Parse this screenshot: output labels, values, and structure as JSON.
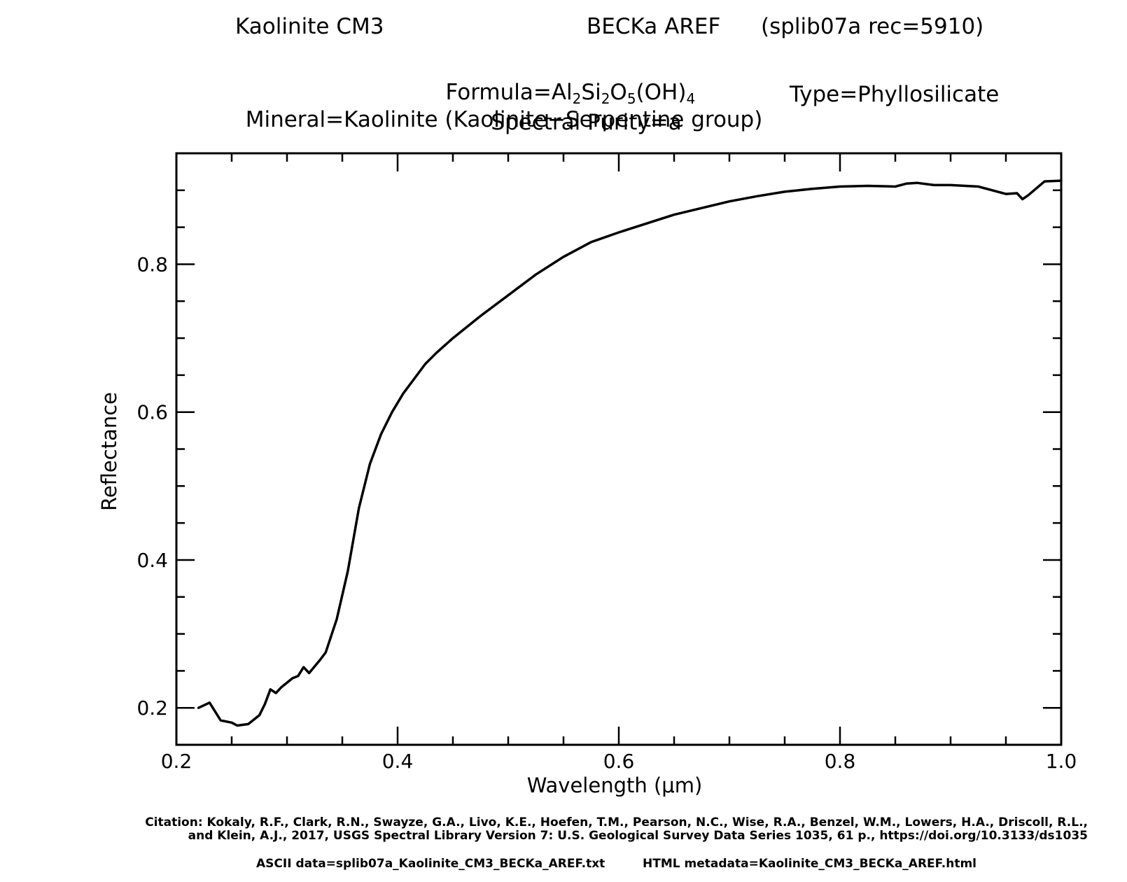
{
  "header": {
    "sample": "Kaolinite CM3",
    "spectrum": "BECKa AREF",
    "record": "(splib07a rec=5910)",
    "formula": {
      "prefix": "Formula=Al",
      "al_sub": "2",
      "si": "Si",
      "si_sub": "2",
      "o": "O",
      "o_sub": "5",
      "oh": "(OH)",
      "oh_sub": "4"
    },
    "mineral": "Mineral=Kaolinite (Kaolinite−Serpentine group)",
    "type": "Type=Phyllosilicate",
    "purity": "Spectral Purity=a"
  },
  "footer": {
    "citation_line1": "Citation: Kokaly, R.F., Clark, R.N., Swayze, G.A., Livo, K.E., Hoefen, T.M., Pearson, N.C., Wise, R.A., Benzel, W.M., Lowers, H.A., Driscoll, R.L.,",
    "citation_line2": "and Klein, A.J., 2017, USGS Spectral Library Version 7: U.S. Geological Survey Data Series 1035, 61 p., https://doi.org/10.3133/ds1035",
    "ascii_data": "ASCII data=splib07a_Kaolinite_CM3_BECKa_AREF.txt",
    "html_metadata": "HTML metadata=Kaolinite_CM3_BECKa_AREF.html"
  },
  "chart_data": {
    "type": "line",
    "xlabel": "Wavelength (μm)",
    "ylabel": "Reflectance",
    "xlim": [
      0.2,
      1.0
    ],
    "ylim": [
      0.15,
      0.95
    ],
    "x_ticks": [
      "0.2",
      "0.4",
      "0.6",
      "0.8",
      "1.0"
    ],
    "y_ticks": [
      "0.2",
      "0.4",
      "0.6",
      "0.8"
    ],
    "line_color": "#000000",
    "series": [
      {
        "x": [
          0.22,
          0.23,
          0.24,
          0.25,
          0.255,
          0.265,
          0.275,
          0.28,
          0.285,
          0.29,
          0.295,
          0.305,
          0.31,
          0.315,
          0.32,
          0.33,
          0.335,
          0.345,
          0.355,
          0.365,
          0.375,
          0.385,
          0.395,
          0.405,
          0.415,
          0.425,
          0.435,
          0.45,
          0.475,
          0.5,
          0.525,
          0.55,
          0.575,
          0.6,
          0.625,
          0.65,
          0.675,
          0.7,
          0.725,
          0.75,
          0.775,
          0.8,
          0.825,
          0.85,
          0.86,
          0.87,
          0.885,
          0.9,
          0.925,
          0.95,
          0.96,
          0.965,
          0.97,
          0.985,
          1.0
        ],
        "y": [
          0.2,
          0.207,
          0.183,
          0.18,
          0.176,
          0.178,
          0.19,
          0.205,
          0.225,
          0.22,
          0.228,
          0.24,
          0.243,
          0.255,
          0.247,
          0.265,
          0.275,
          0.32,
          0.385,
          0.47,
          0.53,
          0.57,
          0.6,
          0.625,
          0.645,
          0.665,
          0.68,
          0.7,
          0.73,
          0.758,
          0.786,
          0.81,
          0.83,
          0.843,
          0.855,
          0.867,
          0.876,
          0.885,
          0.892,
          0.898,
          0.902,
          0.905,
          0.906,
          0.905,
          0.909,
          0.91,
          0.907,
          0.907,
          0.905,
          0.895,
          0.896,
          0.888,
          0.893,
          0.912,
          0.913
        ]
      }
    ]
  }
}
